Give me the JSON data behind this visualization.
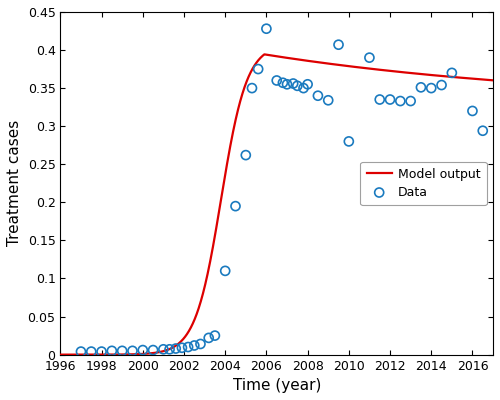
{
  "title": "",
  "xlabel": "Time (year)",
  "ylabel": "Treatment cases",
  "xlim": [
    1996,
    2017
  ],
  "ylim": [
    0,
    0.45
  ],
  "xticks": [
    1996,
    1998,
    2000,
    2002,
    2004,
    2006,
    2008,
    2010,
    2012,
    2014,
    2016
  ],
  "yticks": [
    0,
    0.05,
    0.1,
    0.15,
    0.2,
    0.25,
    0.3,
    0.35,
    0.4,
    0.45
  ],
  "data_points": [
    [
      1997,
      0.004
    ],
    [
      1997.5,
      0.004
    ],
    [
      1998,
      0.004
    ],
    [
      1998.5,
      0.005
    ],
    [
      1999,
      0.005
    ],
    [
      1999.5,
      0.005
    ],
    [
      2000,
      0.006
    ],
    [
      2000.5,
      0.006
    ],
    [
      2001,
      0.007
    ],
    [
      2001.3,
      0.007
    ],
    [
      2001.6,
      0.008
    ],
    [
      2001.9,
      0.009
    ],
    [
      2002.2,
      0.01
    ],
    [
      2002.5,
      0.012
    ],
    [
      2002.8,
      0.014
    ],
    [
      2003.2,
      0.022
    ],
    [
      2003.5,
      0.025
    ],
    [
      2004.0,
      0.11
    ],
    [
      2004.5,
      0.195
    ],
    [
      2005.0,
      0.262
    ],
    [
      2005.3,
      0.35
    ],
    [
      2005.6,
      0.375
    ],
    [
      2006.0,
      0.428
    ],
    [
      2006.5,
      0.36
    ],
    [
      2006.8,
      0.357
    ],
    [
      2007.0,
      0.355
    ],
    [
      2007.3,
      0.356
    ],
    [
      2007.5,
      0.353
    ],
    [
      2007.8,
      0.35
    ],
    [
      2008.0,
      0.355
    ],
    [
      2008.5,
      0.34
    ],
    [
      2009.0,
      0.334
    ],
    [
      2009.5,
      0.407
    ],
    [
      2010.0,
      0.28
    ],
    [
      2011.0,
      0.39
    ],
    [
      2011.5,
      0.335
    ],
    [
      2012.0,
      0.335
    ],
    [
      2012.5,
      0.333
    ],
    [
      2013.0,
      0.333
    ],
    [
      2013.5,
      0.351
    ],
    [
      2014.0,
      0.35
    ],
    [
      2014.5,
      0.354
    ],
    [
      2015.0,
      0.37
    ],
    [
      2016.0,
      0.32
    ],
    [
      2016.5,
      0.294
    ]
  ],
  "model_t0": 2003.8,
  "model_k": 1.6,
  "model_peak": 0.408,
  "model_t_peak": 2005.9,
  "model_decay_k": 0.065,
  "model_floor": 0.328,
  "line_color": "#dd0000",
  "data_color": "#1a7abf",
  "line_width": 1.6,
  "marker_size": 6.5,
  "marker_lw": 1.2
}
